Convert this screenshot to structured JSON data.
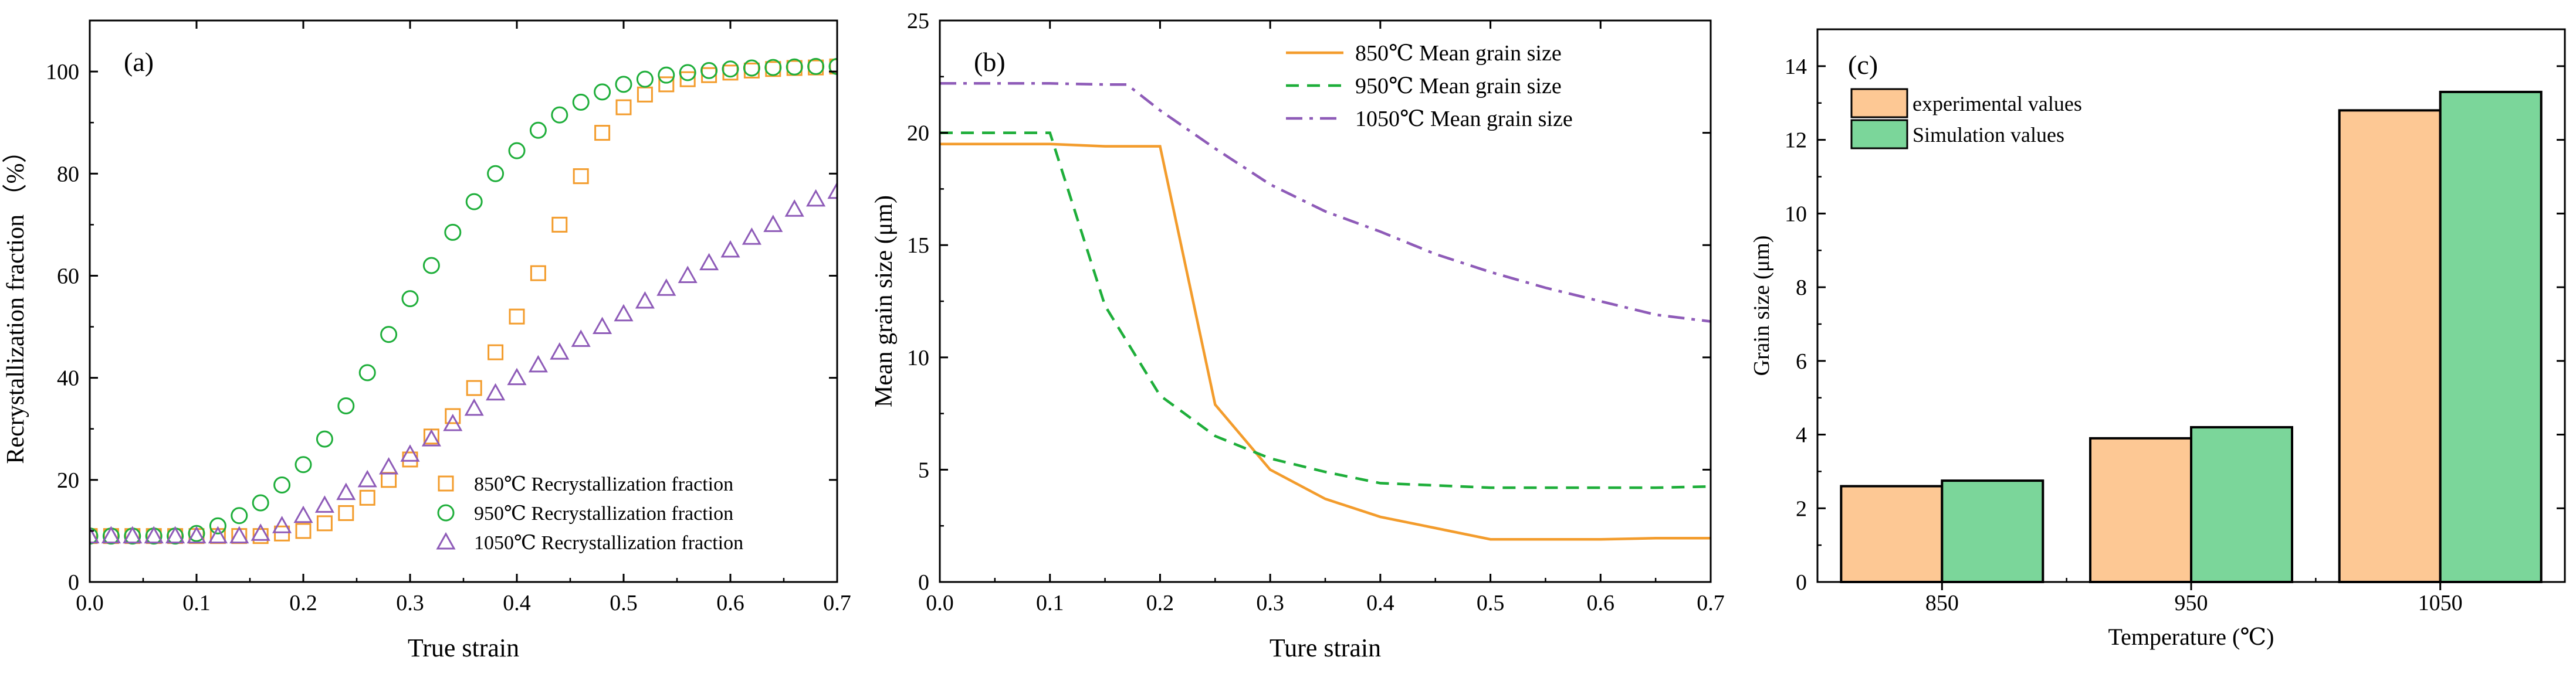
{
  "chart_data": [
    {
      "panel": "(a)",
      "type": "scatter",
      "xlabel": "True strain",
      "ylabel": "Recrystallization fraction （%）",
      "xlim": [
        0,
        0.7
      ],
      "ylim": [
        0,
        110
      ],
      "xticks": [
        0.0,
        0.1,
        0.2,
        0.3,
        0.4,
        0.5,
        0.6,
        0.7
      ],
      "xtick_labels": [
        "0.0",
        "0.1",
        "0.2",
        "0.3",
        "0.4",
        "0.5",
        "0.6",
        "0.7"
      ],
      "yticks": [
        0,
        20,
        40,
        60,
        80,
        100
      ],
      "ytick_labels": [
        "0",
        "20",
        "40",
        "60",
        "80",
        "100"
      ],
      "legend_position": "bottom-right",
      "series": [
        {
          "name": "850℃ Recrystallization fraction",
          "marker": "square",
          "color": "#F39C2C",
          "x": [
            0.0,
            0.02,
            0.04,
            0.06,
            0.08,
            0.1,
            0.12,
            0.14,
            0.16,
            0.18,
            0.2,
            0.22,
            0.24,
            0.26,
            0.28,
            0.3,
            0.32,
            0.34,
            0.36,
            0.38,
            0.4,
            0.42,
            0.44,
            0.46,
            0.48,
            0.5,
            0.52,
            0.54,
            0.56,
            0.58,
            0.6,
            0.62,
            0.64,
            0.66,
            0.68,
            0.7
          ],
          "y": [
            9,
            9,
            9,
            9,
            9,
            9,
            9,
            9,
            9,
            9.5,
            10,
            11.5,
            13.5,
            16.5,
            20,
            24,
            28.5,
            32.5,
            38,
            45,
            52,
            60.5,
            70,
            79.5,
            88,
            93,
            95.5,
            97.5,
            98.5,
            99.3,
            99.8,
            100.2,
            100.5,
            100.7,
            100.8,
            101
          ]
        },
        {
          "name": "950℃ Recrystallization fraction",
          "marker": "circle",
          "color": "#1EAE3A",
          "x": [
            0.0,
            0.02,
            0.04,
            0.06,
            0.08,
            0.1,
            0.12,
            0.14,
            0.16,
            0.18,
            0.2,
            0.22,
            0.24,
            0.26,
            0.28,
            0.3,
            0.32,
            0.34,
            0.36,
            0.38,
            0.4,
            0.42,
            0.44,
            0.46,
            0.48,
            0.5,
            0.52,
            0.54,
            0.56,
            0.58,
            0.6,
            0.62,
            0.64,
            0.66,
            0.68,
            0.7
          ],
          "y": [
            9,
            9,
            9,
            9,
            9,
            9.5,
            11,
            13,
            15.5,
            19,
            23,
            28,
            34.5,
            41,
            48.5,
            55.5,
            62,
            68.5,
            74.5,
            80,
            84.5,
            88.5,
            91.5,
            94,
            96,
            97.5,
            98.5,
            99.3,
            99.8,
            100.2,
            100.5,
            100.7,
            100.8,
            100.9,
            101,
            101
          ]
        },
        {
          "name": "1050℃ Recrystallization fraction",
          "marker": "triangle",
          "color": "#8E5BB8",
          "x": [
            0.0,
            0.02,
            0.04,
            0.06,
            0.08,
            0.1,
            0.12,
            0.14,
            0.16,
            0.18,
            0.2,
            0.22,
            0.24,
            0.26,
            0.28,
            0.3,
            0.32,
            0.34,
            0.36,
            0.38,
            0.4,
            0.42,
            0.44,
            0.46,
            0.48,
            0.5,
            0.52,
            0.54,
            0.56,
            0.58,
            0.6,
            0.62,
            0.64,
            0.66,
            0.68,
            0.7
          ],
          "y": [
            9,
            9,
            9,
            9,
            9,
            9,
            9,
            9,
            9.5,
            11,
            13,
            15,
            17.5,
            20,
            22.5,
            25,
            28,
            31,
            34,
            37,
            40,
            42.5,
            45,
            47.5,
            50,
            52.5,
            55,
            57.5,
            60,
            62.5,
            65,
            67.5,
            70,
            73,
            75,
            76.5
          ]
        }
      ]
    },
    {
      "panel": "(b)",
      "type": "line",
      "xlabel": "Ture strain",
      "ylabel": "Mean grain size (μm)",
      "xlim": [
        0,
        0.7
      ],
      "ylim": [
        0,
        25
      ],
      "xticks": [
        0.0,
        0.1,
        0.2,
        0.3,
        0.4,
        0.5,
        0.6,
        0.7
      ],
      "xtick_labels": [
        "0.0",
        "0.1",
        "0.2",
        "0.3",
        "0.4",
        "0.5",
        "0.6",
        "0.7"
      ],
      "yticks": [
        0,
        5,
        10,
        15,
        20,
        25
      ],
      "ytick_labels": [
        "0",
        "5",
        "10",
        "15",
        "20",
        "25"
      ],
      "legend_position": "top-right",
      "series": [
        {
          "name": "850℃ Mean grain size",
          "style": "solid",
          "color": "#F39C2C",
          "x": [
            0.0,
            0.05,
            0.1,
            0.15,
            0.2,
            0.25,
            0.3,
            0.35,
            0.4,
            0.45,
            0.5,
            0.55,
            0.6,
            0.65,
            0.7
          ],
          "y": [
            19.5,
            19.5,
            19.5,
            19.4,
            19.4,
            7.9,
            5.0,
            3.7,
            2.9,
            2.4,
            1.9,
            1.9,
            1.9,
            1.95,
            1.95
          ]
        },
        {
          "name": "950℃ Mean grain size",
          "style": "dashed",
          "color": "#1EAE3A",
          "x": [
            0.0,
            0.05,
            0.1,
            0.15,
            0.2,
            0.25,
            0.3,
            0.35,
            0.4,
            0.45,
            0.5,
            0.55,
            0.6,
            0.65,
            0.7
          ],
          "y": [
            20.0,
            20.0,
            20.0,
            12.3,
            8.3,
            6.5,
            5.5,
            4.9,
            4.4,
            4.3,
            4.2,
            4.2,
            4.2,
            4.2,
            4.25
          ]
        },
        {
          "name": "1050℃ Mean grain size",
          "style": "dashdot",
          "color": "#8E5BB8",
          "x": [
            0.0,
            0.05,
            0.1,
            0.15,
            0.17,
            0.2,
            0.25,
            0.3,
            0.35,
            0.4,
            0.45,
            0.5,
            0.55,
            0.6,
            0.65,
            0.7
          ],
          "y": [
            22.2,
            22.2,
            22.2,
            22.15,
            22.15,
            21.0,
            19.3,
            17.7,
            16.5,
            15.6,
            14.6,
            13.8,
            13.1,
            12.5,
            11.9,
            11.6
          ]
        }
      ]
    },
    {
      "panel": "(c)",
      "type": "bar",
      "xlabel": "Temperature (℃)",
      "ylabel": "Grain size (μm)",
      "ylim": [
        0,
        15
      ],
      "categories": [
        "850",
        "950",
        "1050"
      ],
      "yticks": [
        0,
        2,
        4,
        6,
        8,
        10,
        12,
        14
      ],
      "ytick_labels": [
        "0",
        "2",
        "4",
        "6",
        "8",
        "10",
        "12",
        "14"
      ],
      "legend_position": "top-left",
      "series": [
        {
          "name": "experimental values",
          "color": "#FDC894",
          "values": [
            2.6,
            3.9,
            12.8
          ]
        },
        {
          "name": "Simulation values",
          "color": "#7BD69A",
          "values": [
            2.75,
            4.2,
            13.3
          ]
        }
      ]
    }
  ]
}
